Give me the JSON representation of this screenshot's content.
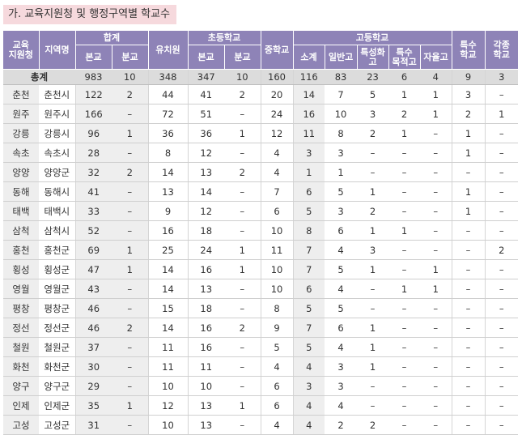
{
  "title": "가. 교육지원청 및 행정구역별 학교수",
  "header": {
    "office": "교육\n지원청",
    "region": "지역명",
    "total_group": "합계",
    "total_main": "본교",
    "total_branch": "분교",
    "kindergarten": "유치원",
    "elem_group": "초등학교",
    "elem_main": "본교",
    "elem_branch": "분교",
    "middle": "중학교",
    "high_group": "고등학교",
    "high_subtotal": "소계",
    "high_general": "일반고",
    "high_specialized": "특성화\n고",
    "high_special_purpose": "특수\n목적고",
    "high_autonomous": "자율고",
    "special_school": "특수\n학교",
    "misc_school": "각종\n학교"
  },
  "total_row": {
    "label": "총계",
    "values": [
      "983",
      "10",
      "348",
      "347",
      "10",
      "160",
      "116",
      "83",
      "23",
      "6",
      "4",
      "9",
      "3"
    ]
  },
  "rows": [
    {
      "office": "춘천",
      "region": "춘천시",
      "values": [
        "122",
        "2",
        "44",
        "41",
        "2",
        "20",
        "14",
        "7",
        "5",
        "1",
        "1",
        "3",
        "–"
      ]
    },
    {
      "office": "원주",
      "region": "원주시",
      "values": [
        "166",
        "–",
        "72",
        "51",
        "–",
        "24",
        "16",
        "10",
        "3",
        "2",
        "1",
        "2",
        "1"
      ]
    },
    {
      "office": "강릉",
      "region": "강릉시",
      "values": [
        "96",
        "1",
        "36",
        "36",
        "1",
        "12",
        "11",
        "8",
        "2",
        "1",
        "–",
        "1",
        "–"
      ]
    },
    {
      "office": "속초",
      "region": "속초시",
      "values": [
        "28",
        "–",
        "8",
        "12",
        "–",
        "4",
        "3",
        "3",
        "–",
        "–",
        "–",
        "1",
        "–"
      ]
    },
    {
      "office": "양양",
      "region": "양양군",
      "values": [
        "32",
        "2",
        "14",
        "13",
        "2",
        "4",
        "1",
        "1",
        "–",
        "–",
        "–",
        "–",
        "–"
      ]
    },
    {
      "office": "동해",
      "region": "동해시",
      "values": [
        "41",
        "–",
        "13",
        "14",
        "–",
        "7",
        "6",
        "5",
        "1",
        "–",
        "–",
        "1",
        "–"
      ]
    },
    {
      "office": "태백",
      "region": "태백시",
      "values": [
        "33",
        "–",
        "9",
        "12",
        "–",
        "6",
        "5",
        "3",
        "2",
        "–",
        "–",
        "1",
        "–"
      ]
    },
    {
      "office": "삼척",
      "region": "삼척시",
      "values": [
        "52",
        "–",
        "16",
        "18",
        "–",
        "10",
        "8",
        "6",
        "1",
        "1",
        "–",
        "–",
        "–"
      ]
    },
    {
      "office": "홍천",
      "region": "홍천군",
      "values": [
        "69",
        "1",
        "25",
        "24",
        "1",
        "11",
        "7",
        "4",
        "3",
        "–",
        "–",
        "–",
        "2"
      ]
    },
    {
      "office": "횡성",
      "region": "횡성군",
      "values": [
        "47",
        "1",
        "14",
        "16",
        "1",
        "10",
        "7",
        "5",
        "1",
        "–",
        "1",
        "–",
        "–"
      ]
    },
    {
      "office": "영월",
      "region": "영월군",
      "values": [
        "43",
        "–",
        "14",
        "13",
        "–",
        "10",
        "6",
        "4",
        "–",
        "1",
        "1",
        "–",
        "–"
      ]
    },
    {
      "office": "평창",
      "region": "평창군",
      "values": [
        "46",
        "–",
        "15",
        "18",
        "–",
        "8",
        "5",
        "5",
        "–",
        "–",
        "–",
        "–",
        "–"
      ]
    },
    {
      "office": "정선",
      "region": "정선군",
      "values": [
        "46",
        "2",
        "14",
        "16",
        "2",
        "9",
        "7",
        "6",
        "1",
        "–",
        "–",
        "–",
        "–"
      ]
    },
    {
      "office": "철원",
      "region": "철원군",
      "values": [
        "37",
        "–",
        "11",
        "16",
        "–",
        "5",
        "5",
        "4",
        "1",
        "–",
        "–",
        "–",
        "–"
      ]
    },
    {
      "office": "화천",
      "region": "화천군",
      "values": [
        "30",
        "–",
        "11",
        "11",
        "–",
        "4",
        "4",
        "3",
        "1",
        "–",
        "–",
        "–",
        "–"
      ]
    },
    {
      "office": "양구",
      "region": "양구군",
      "values": [
        "29",
        "–",
        "10",
        "10",
        "–",
        "6",
        "3",
        "3",
        "–",
        "–",
        "–",
        "–",
        "–"
      ]
    },
    {
      "office": "인제",
      "region": "인제군",
      "values": [
        "35",
        "1",
        "12",
        "13",
        "1",
        "6",
        "4",
        "4",
        "–",
        "–",
        "–",
        "–",
        "–"
      ]
    },
    {
      "office": "고성",
      "region": "고성군",
      "values": [
        "31",
        "–",
        "10",
        "13",
        "–",
        "4",
        "4",
        "2",
        "2",
        "–",
        "–",
        "–",
        "–"
      ]
    }
  ]
}
